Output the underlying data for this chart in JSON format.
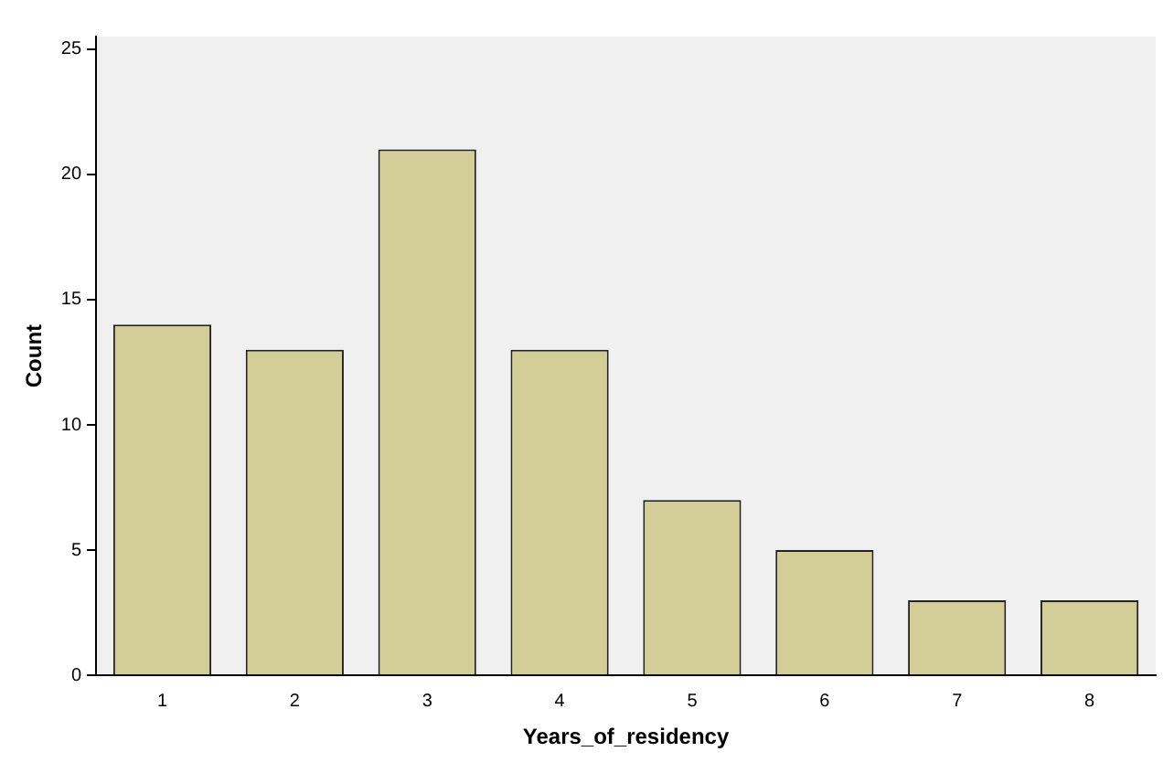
{
  "chart_data": {
    "type": "bar",
    "xlabel": "Years_of_residency",
    "ylabel": "Count",
    "categories": [
      "1",
      "2",
      "3",
      "4",
      "5",
      "6",
      "7",
      "8"
    ],
    "values": [
      14,
      13,
      21,
      13,
      7,
      5,
      3,
      3
    ],
    "color": "#d3ce98",
    "ylim": [
      0,
      25.5
    ],
    "yticks": [
      0,
      5,
      10,
      15,
      20,
      25
    ],
    "grid": false,
    "legend": false
  }
}
